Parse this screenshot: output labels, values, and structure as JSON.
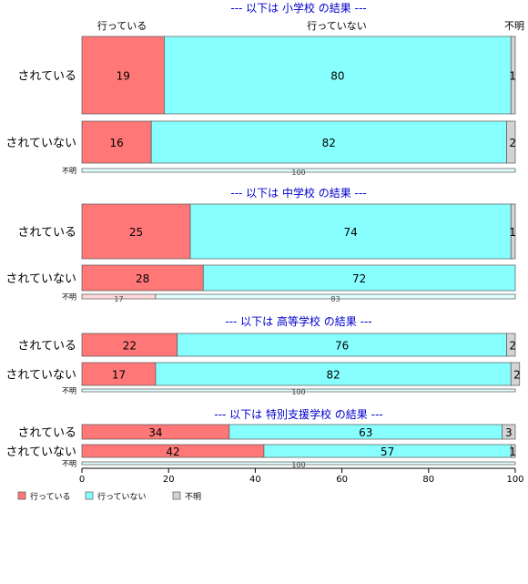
{
  "chart_data": {
    "type": "bar",
    "orientation": "horizontal",
    "stacked": true,
    "xlim": [
      0,
      100
    ],
    "x_ticks": [
      "0",
      "20",
      "40",
      "60",
      "80",
      "100"
    ],
    "series_names": [
      "行っている",
      "行っていない",
      "不明"
    ],
    "colors": {
      "行っている": "#ff7777",
      "行っていない": "#88ffff",
      "不明": "#d3d3d3",
      "section_title": "#0000cc"
    },
    "legend": {
      "position": "bottom-left",
      "entries": [
        "行っている",
        "行っていない",
        "不明"
      ]
    },
    "top_category_labels": [
      "行っている",
      "行っていない",
      "不明"
    ],
    "panels": [
      {
        "title": "--- 以下は 小学校 の結果 ---",
        "categories": [
          "されている",
          "されていない",
          "不明"
        ],
        "series": [
          {
            "name": "行っている",
            "values": [
              19,
              16,
              0
            ]
          },
          {
            "name": "行っていない",
            "values": [
              80,
              82,
              100
            ]
          },
          {
            "name": "不明",
            "values": [
              1,
              2,
              0
            ]
          }
        ]
      },
      {
        "title": "--- 以下は 中学校 の結果 ---",
        "categories": [
          "されている",
          "されていない",
          "不明"
        ],
        "series": [
          {
            "name": "行っている",
            "values": [
              25,
              28,
              17
            ]
          },
          {
            "name": "行っていない",
            "values": [
              74,
              72,
              83
            ]
          },
          {
            "name": "不明",
            "values": [
              1,
              0,
              0
            ]
          }
        ]
      },
      {
        "title": "--- 以下は 高等学校 の結果 ---",
        "categories": [
          "されている",
          "されていない",
          "不明"
        ],
        "series": [
          {
            "name": "行っている",
            "values": [
              22,
              17,
              0
            ]
          },
          {
            "name": "行っていない",
            "values": [
              76,
              82,
              100
            ]
          },
          {
            "name": "不明",
            "values": [
              2,
              2,
              0
            ]
          }
        ]
      },
      {
        "title": "--- 以下は 特別支援学校 の結果 ---",
        "categories": [
          "されている",
          "されていない",
          "不明"
        ],
        "series": [
          {
            "name": "行っている",
            "values": [
              34,
              42,
              0
            ]
          },
          {
            "name": "行っていない",
            "values": [
              63,
              57,
              100
            ]
          },
          {
            "name": "不明",
            "values": [
              3,
              1,
              0
            ]
          }
        ]
      }
    ]
  }
}
